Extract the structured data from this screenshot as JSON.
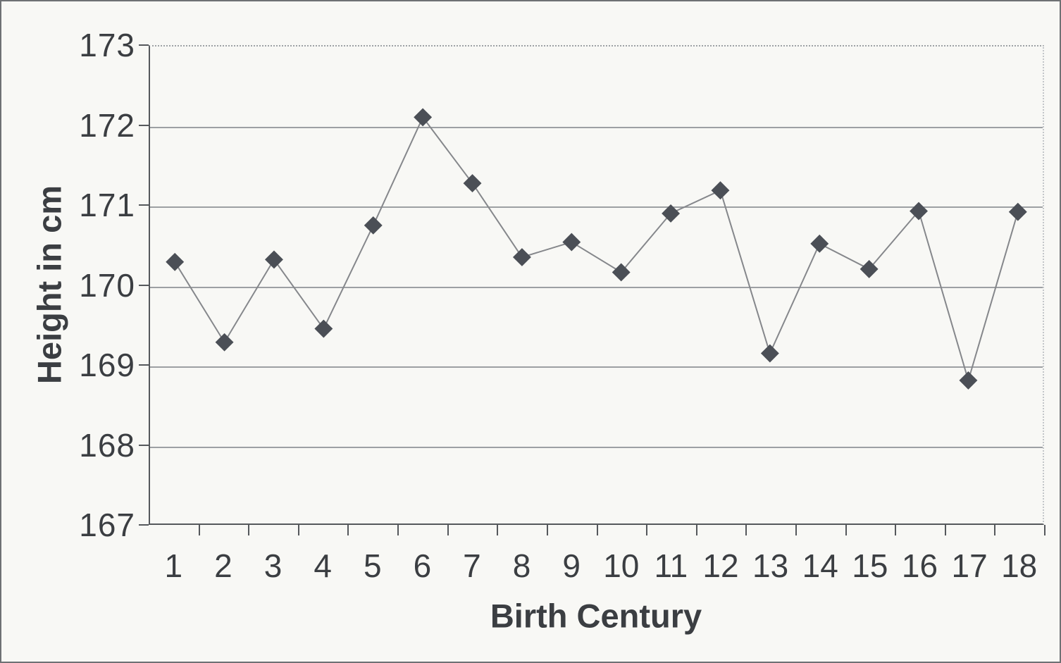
{
  "chart_data": {
    "type": "line",
    "title": "",
    "xlabel": "Birth Century",
    "ylabel": "Height in cm",
    "categories": [
      "1",
      "2",
      "3",
      "4",
      "5",
      "6",
      "7",
      "8",
      "9",
      "10",
      "11",
      "12",
      "13",
      "14",
      "15",
      "16",
      "17",
      "18"
    ],
    "values": [
      170.29,
      169.28,
      170.32,
      169.45,
      170.75,
      172.11,
      171.28,
      170.35,
      170.54,
      170.16,
      170.9,
      171.19,
      169.14,
      170.52,
      170.2,
      170.93,
      168.8,
      170.92
    ],
    "ylim": [
      167,
      173
    ],
    "yticks": [
      173,
      172,
      171,
      170,
      169,
      168,
      167
    ],
    "grid": "horizontal gridlines at each y tick, top gridline dotted",
    "legend": "none",
    "marker": "diamond"
  },
  "colors": {
    "background": "#f8f8f5",
    "outer_border": "#6e7174",
    "axis": "#55585c",
    "gridline": "#8d9094",
    "text": "#3b3e42",
    "series_line": "#85878b",
    "marker_fill": "#4b4f56"
  }
}
